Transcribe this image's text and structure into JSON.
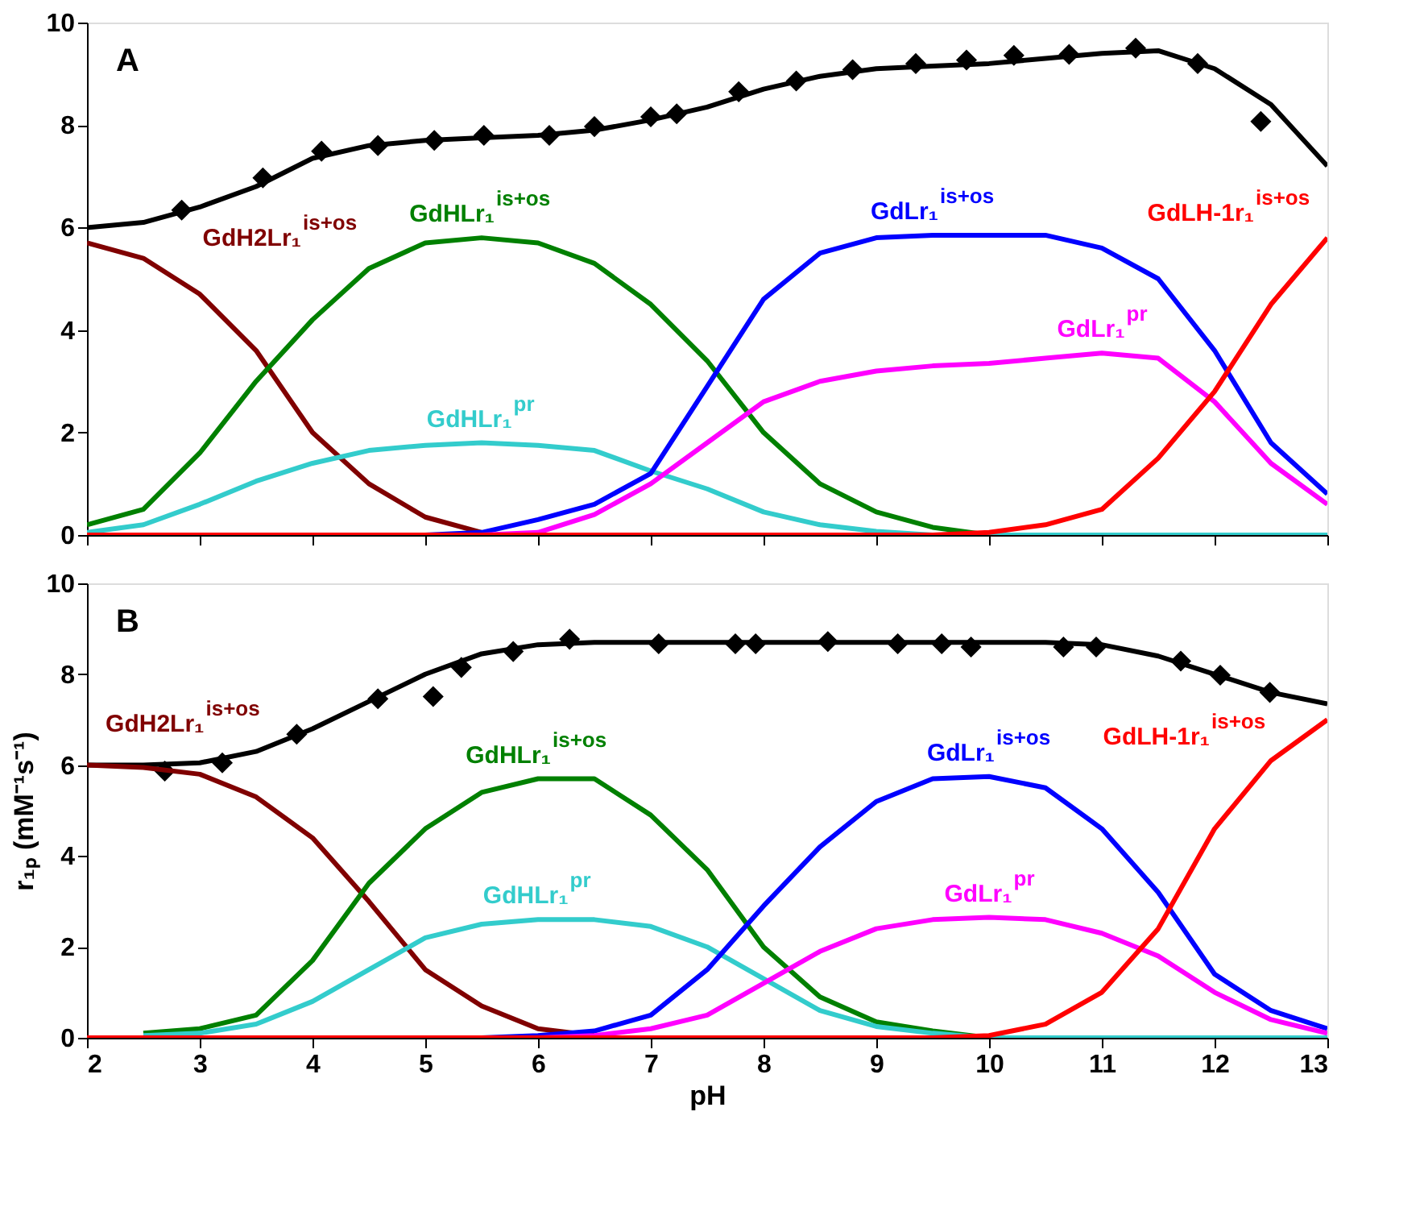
{
  "chart_data": [
    {
      "type": "line",
      "title": "A",
      "x": [
        2,
        2.5,
        3,
        3.5,
        4,
        4.5,
        5,
        5.5,
        6,
        6.5,
        7,
        7.5,
        8,
        8.5,
        9,
        9.5,
        10,
        10.5,
        11,
        11.5,
        12,
        12.5,
        13
      ],
      "xlim": [
        2,
        13
      ],
      "xticks": [
        2,
        3,
        4,
        5,
        6,
        7,
        8,
        9,
        10,
        11,
        12,
        13
      ],
      "ylim": [
        0,
        10
      ],
      "yticks": [
        0,
        2,
        4,
        6,
        8,
        10
      ],
      "tick_labels": "y",
      "grid": false,
      "line_style": "solid",
      "series": [
        {
          "type": "line",
          "color": "#000000",
          "values": [
            6.0,
            6.1,
            6.4,
            6.8,
            7.35,
            7.6,
            7.7,
            7.75,
            7.8,
            7.9,
            8.1,
            8.35,
            8.7,
            8.95,
            9.1,
            9.15,
            9.2,
            9.3,
            9.4,
            9.45,
            9.1,
            8.4,
            7.2
          ]
        },
        {
          "type": "scatter",
          "marker": "diamond",
          "color": "#000000",
          "x": [
            2.84,
            3.56,
            4.08,
            4.58,
            5.08,
            5.52,
            6.1,
            6.5,
            7.0,
            7.23,
            7.78,
            8.29,
            8.79,
            9.35,
            9.8,
            10.22,
            10.71,
            11.3,
            11.85,
            12.41
          ],
          "values": [
            6.34,
            6.97,
            7.49,
            7.6,
            7.7,
            7.8,
            7.8,
            7.97,
            8.16,
            8.22,
            8.65,
            8.86,
            9.08,
            9.2,
            9.27,
            9.36,
            9.38,
            9.5,
            9.2,
            8.07
          ]
        },
        {
          "type": "line",
          "name": "GdH2Lr₁$^{is+os}$",
          "color": "#800000",
          "values": [
            5.7,
            5.4,
            4.7,
            3.6,
            2.0,
            1.0,
            0.35,
            0.05,
            null,
            null,
            null,
            null,
            null,
            null,
            null,
            null,
            null,
            null,
            null,
            null,
            null,
            null,
            null
          ]
        },
        {
          "type": "line",
          "name": "GdHLr₁$^{is+os}$",
          "color": "#008000",
          "values": [
            0.2,
            0.5,
            1.6,
            3.0,
            4.2,
            5.2,
            5.7,
            5.8,
            5.7,
            5.3,
            4.5,
            3.4,
            2.0,
            1.0,
            0.45,
            0.15,
            0,
            0,
            null,
            null,
            null,
            null,
            null
          ]
        },
        {
          "type": "line",
          "name": "GdHLr₁$^{pr}$",
          "color": "#33cccc",
          "values": [
            0.05,
            0.2,
            0.6,
            1.05,
            1.4,
            1.65,
            1.75,
            1.8,
            1.75,
            1.65,
            1.25,
            0.9,
            0.45,
            0.2,
            0.07,
            0,
            0,
            0,
            0,
            0,
            0,
            0,
            0
          ]
        },
        {
          "type": "line",
          "name": "GdLr₁$^{is+os}$",
          "color": "#0000ff",
          "values": [
            null,
            null,
            null,
            null,
            null,
            null,
            0,
            0.05,
            0.3,
            0.6,
            1.2,
            2.9,
            4.6,
            5.5,
            5.8,
            5.85,
            5.85,
            5.85,
            5.6,
            5.0,
            3.6,
            1.8,
            0.8
          ]
        },
        {
          "type": "line",
          "name": "GdLr₁$^{pr}$",
          "color": "#ff00ff",
          "values": [
            null,
            null,
            null,
            null,
            null,
            null,
            null,
            0,
            0.05,
            0.4,
            1.0,
            1.8,
            2.6,
            3.0,
            3.2,
            3.3,
            3.35,
            3.45,
            3.55,
            3.45,
            2.6,
            1.4,
            0.6
          ]
        },
        {
          "type": "line",
          "name": "GdLH-1r₁$^{is+os}$",
          "color": "#ff0000",
          "values": [
            0,
            0,
            0,
            0,
            0,
            0,
            0,
            0,
            0,
            0,
            0,
            0,
            0,
            0,
            0,
            0,
            0.05,
            0.2,
            0.5,
            1.5,
            2.8,
            4.5,
            5.8
          ]
        }
      ]
    },
    {
      "type": "line",
      "title": "B",
      "xlabel": "pH",
      "ylabel": "r₁ₚ (mM⁻¹s⁻¹)",
      "x": [
        2,
        2.5,
        3,
        3.5,
        4,
        4.5,
        5,
        5.5,
        6,
        6.5,
        7,
        7.5,
        8,
        8.5,
        9,
        9.5,
        10,
        10.5,
        11,
        11.5,
        12,
        12.5,
        13
      ],
      "xlim": [
        2,
        13
      ],
      "xticks": [
        2,
        3,
        4,
        5,
        6,
        7,
        8,
        9,
        10,
        11,
        12,
        13
      ],
      "ylim": [
        0,
        10
      ],
      "yticks": [
        0,
        2,
        4,
        6,
        8,
        10
      ],
      "grid": false,
      "line_style": "solid",
      "series": [
        {
          "type": "line",
          "color": "#000000",
          "values": [
            6.0,
            6.0,
            6.05,
            6.3,
            6.8,
            7.4,
            8.0,
            8.45,
            8.65,
            8.7,
            8.7,
            8.7,
            8.7,
            8.7,
            8.7,
            8.7,
            8.7,
            8.7,
            8.65,
            8.4,
            8.0,
            7.6,
            7.35
          ]
        },
        {
          "type": "scatter",
          "marker": "diamond",
          "color": "#000000",
          "x": [
            2.69,
            3.2,
            3.86,
            4.58,
            5.07,
            5.32,
            5.78,
            6.28,
            7.07,
            7.75,
            7.93,
            8.57,
            9.19,
            9.58,
            9.84,
            10.66,
            10.95,
            11.7,
            12.05,
            12.49
          ],
          "values": [
            5.87,
            6.05,
            6.68,
            7.46,
            7.51,
            8.15,
            8.5,
            8.77,
            8.67,
            8.67,
            8.67,
            8.72,
            8.67,
            8.67,
            8.6,
            8.6,
            8.6,
            8.29,
            7.98,
            7.6
          ]
        },
        {
          "type": "line",
          "name": "GdH2Lr₁$^{is+os}$",
          "color": "#800000",
          "values": [
            6.0,
            5.95,
            5.8,
            5.3,
            4.4,
            3.0,
            1.5,
            0.7,
            0.2,
            0.05,
            null,
            null,
            null,
            null,
            null,
            null,
            null,
            null,
            null,
            null,
            null,
            null,
            null
          ]
        },
        {
          "type": "line",
          "name": "GdHLr₁$^{is+os}$",
          "color": "#008000",
          "values": [
            null,
            0.1,
            0.2,
            0.5,
            1.7,
            3.4,
            4.6,
            5.4,
            5.7,
            5.7,
            4.9,
            3.7,
            2.0,
            0.9,
            0.35,
            0.15,
            0,
            0,
            null,
            null,
            null,
            null,
            null
          ]
        },
        {
          "type": "line",
          "name": "GdHLr₁$^{pr}$",
          "color": "#33cccc",
          "values": [
            null,
            0.05,
            0.1,
            0.3,
            0.8,
            1.5,
            2.2,
            2.5,
            2.6,
            2.6,
            2.45,
            2.0,
            1.3,
            0.6,
            0.25,
            0.1,
            0,
            0,
            0,
            0,
            0,
            0,
            0
          ]
        },
        {
          "type": "line",
          "name": "GdLr₁$^{is+os}$",
          "color": "#0000ff",
          "values": [
            null,
            null,
            null,
            null,
            null,
            null,
            null,
            0,
            0.05,
            0.15,
            0.5,
            1.5,
            2.9,
            4.2,
            5.2,
            5.7,
            5.75,
            5.5,
            4.6,
            3.2,
            1.4,
            0.6,
            0.2
          ]
        },
        {
          "type": "line",
          "name": "GdLr₁$^{pr}$",
          "color": "#ff00ff",
          "values": [
            null,
            null,
            null,
            null,
            null,
            null,
            null,
            null,
            0,
            0.05,
            0.2,
            0.5,
            1.2,
            1.9,
            2.4,
            2.6,
            2.65,
            2.6,
            2.3,
            1.8,
            1.0,
            0.4,
            0.1
          ]
        },
        {
          "type": "line",
          "name": "GdLH-1r₁$^{is+os}$",
          "color": "#ff0000",
          "values": [
            0,
            0,
            0,
            0,
            0,
            0,
            0,
            0,
            0,
            0,
            0,
            0,
            0,
            0,
            0,
            0,
            0.05,
            0.3,
            1.0,
            2.4,
            4.6,
            6.1,
            7.0
          ]
        }
      ]
    }
  ]
}
